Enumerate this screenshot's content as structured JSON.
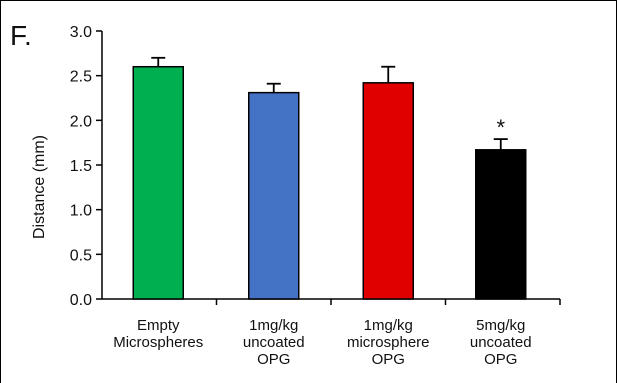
{
  "panel_label": "F.",
  "chart_data": {
    "type": "bar",
    "ylabel": "Distance (mm)",
    "xlabel": "",
    "ylim": [
      0,
      3.0
    ],
    "yticks": [
      "0.0",
      "0.5",
      "1.0",
      "1.5",
      "2.0",
      "2.5",
      "3.0"
    ],
    "grid": false,
    "categories": [
      [
        "Empty",
        "Microspheres"
      ],
      [
        "1mg/kg",
        "uncoated",
        "OPG"
      ],
      [
        "1mg/kg",
        "microsphere",
        "OPG"
      ],
      [
        "5mg/kg",
        "uncoated",
        "OPG"
      ]
    ],
    "values": [
      2.6,
      2.31,
      2.42,
      1.67
    ],
    "errors": [
      0.1,
      0.1,
      0.18,
      0.12
    ],
    "colors": [
      "#00b050",
      "#4472c4",
      "#e00000",
      "#000000"
    ],
    "annotations": [
      "",
      "",
      "",
      "*"
    ]
  }
}
